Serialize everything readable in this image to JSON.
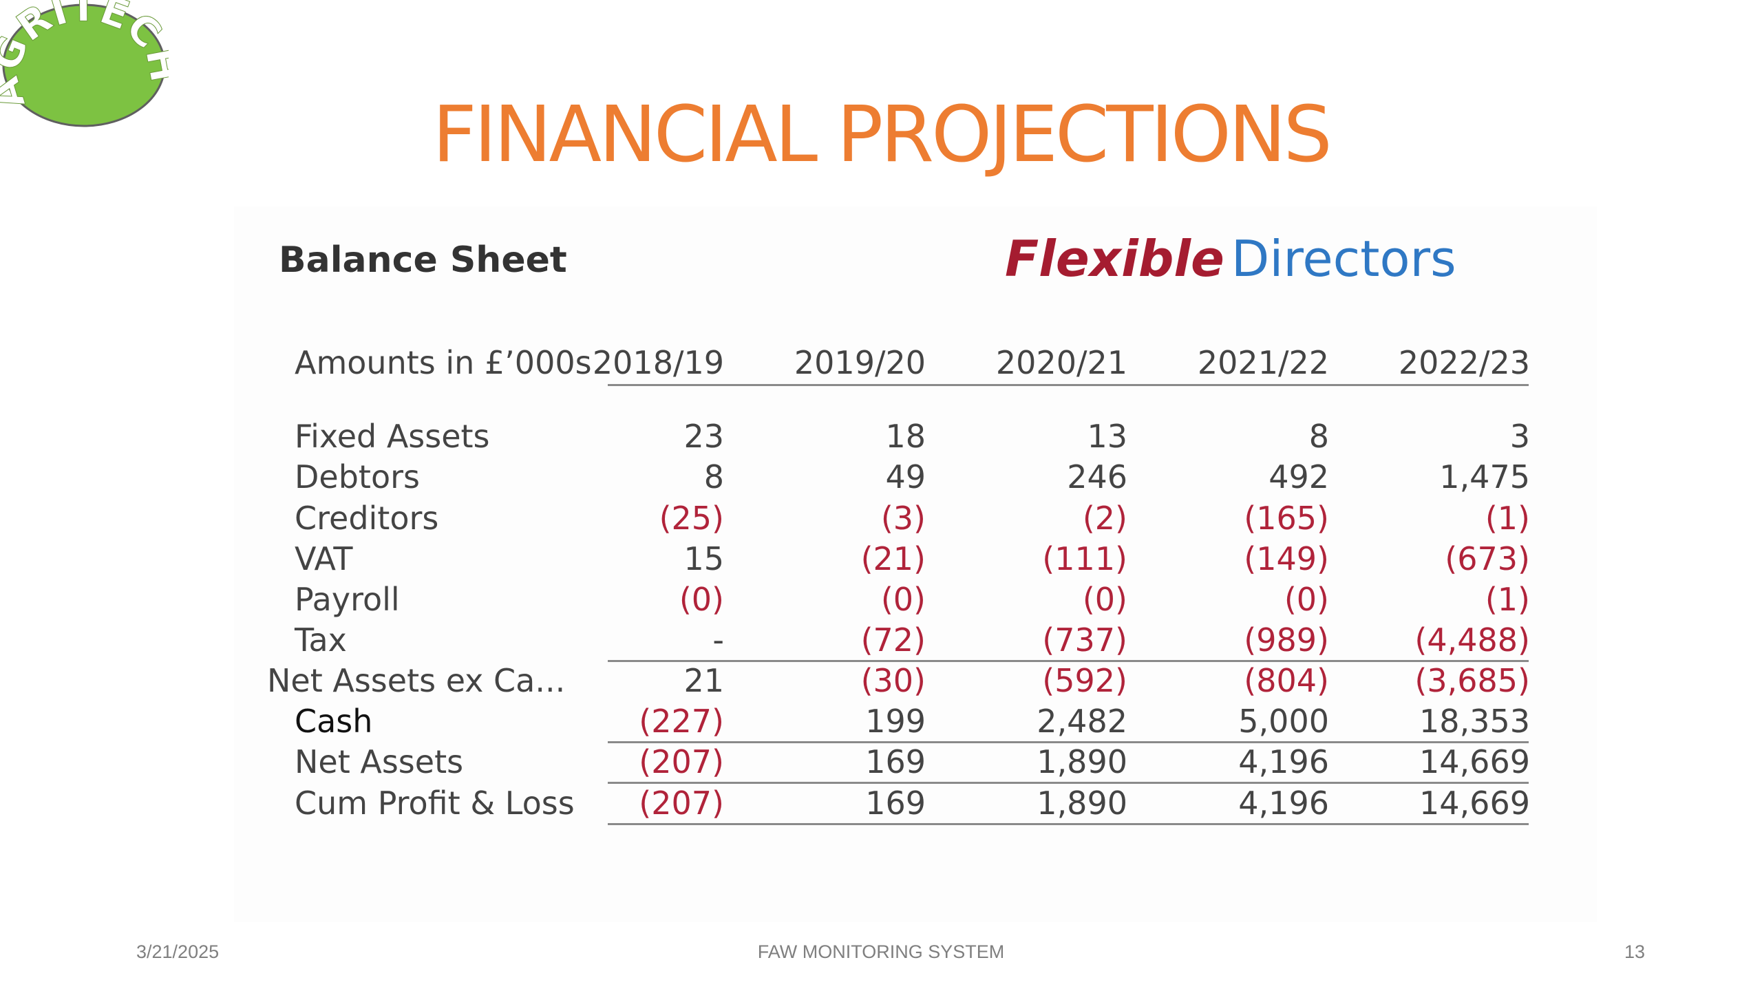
{
  "slide": {
    "title": "FINANCIAL PROJECTIONS",
    "logo": {
      "text": "AGRITECH",
      "fill_color": "#7DC242",
      "text_color": "#FFFFFF"
    }
  },
  "sheet": {
    "heading": "Balance Sheet",
    "brand_part1": "Flexible",
    "brand_part2": "Directors",
    "header_label": "Amounts in £’000s",
    "years": [
      "2018/19",
      "2019/20",
      "2020/21",
      "2021/22",
      "2022/23"
    ],
    "rows": [
      {
        "label": "Fixed Assets",
        "values": [
          "23",
          "18",
          "13",
          "8",
          "3"
        ]
      },
      {
        "label": "Debtors",
        "values": [
          "8",
          "49",
          "246",
          "492",
          "1,475"
        ]
      },
      {
        "label": "Creditors",
        "values": [
          "(25)",
          "(3)",
          "(2)",
          "(165)",
          "(1)"
        ]
      },
      {
        "label": "VAT",
        "values": [
          "15",
          "(21)",
          "(111)",
          "(149)",
          "(673)"
        ]
      },
      {
        "label": "Payroll",
        "values": [
          "(0)",
          "(0)",
          "(0)",
          "(0)",
          "(1)"
        ]
      },
      {
        "label": "Tax",
        "values": [
          "-",
          "(72)",
          "(737)",
          "(989)",
          "(4,488)"
        ]
      },
      {
        "label": "Net Assets ex Ca...",
        "values": [
          "21",
          "(30)",
          "(592)",
          "(804)",
          "(3,685)"
        ]
      },
      {
        "label": "Cash",
        "values": [
          "(227)",
          "199",
          "2,482",
          "5,000",
          "18,353"
        ]
      },
      {
        "label": "Net Assets",
        "values": [
          "(207)",
          "169",
          "1,890",
          "4,196",
          "14,669"
        ]
      },
      {
        "label": "Cum Profit & Loss",
        "values": [
          "(207)",
          "169",
          "1,890",
          "4,196",
          "14,669"
        ]
      }
    ],
    "colors": {
      "negative": "#B0233A",
      "positive": "#444444",
      "title": "#ED7D31"
    }
  },
  "footer": {
    "date": "3/21/2025",
    "center": "FAW MONITORING SYSTEM",
    "page": "13"
  }
}
